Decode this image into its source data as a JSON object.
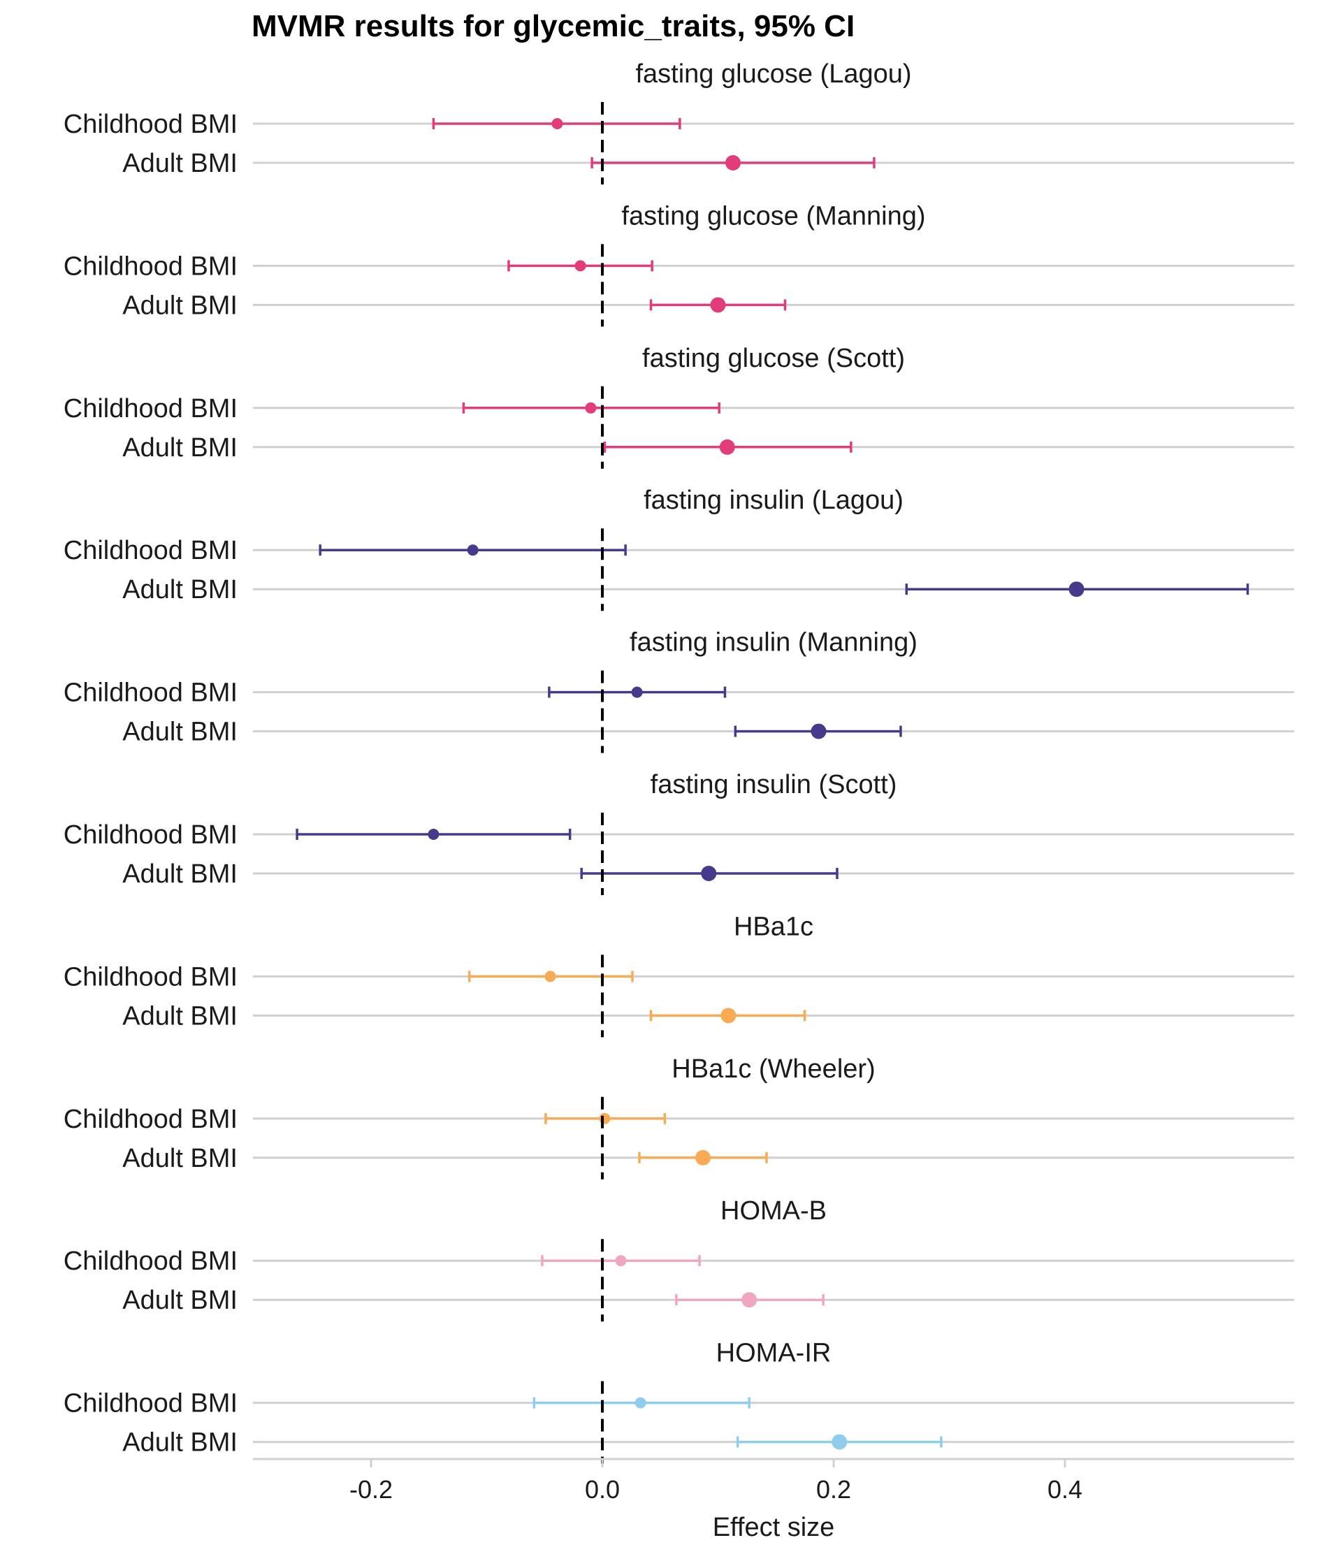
{
  "chart_data": {
    "type": "forest",
    "title": "MVMR results for glycemic_traits, 95% CI",
    "xlabel": "Effect size",
    "xlim": [
      -0.3,
      0.6
    ],
    "x_ticks": [
      -0.2,
      0.0,
      0.2,
      0.4
    ],
    "x_tick_labels": [
      "-0.2",
      "0.0",
      "0.2",
      "0.4"
    ],
    "reference_line": 0,
    "grid": "horizontal",
    "row_labels": [
      "Childhood BMI",
      "Adult BMI"
    ],
    "facets": [
      {
        "title": "fasting glucose (Lagou)",
        "color": "#E23C7B",
        "rows": [
          {
            "label": "Childhood BMI",
            "estimate": -0.039,
            "lower": -0.146,
            "upper": 0.067
          },
          {
            "label": "Adult BMI",
            "estimate": 0.113,
            "lower": -0.009,
            "upper": 0.235
          }
        ]
      },
      {
        "title": "fasting glucose (Manning)",
        "color": "#E23C7B",
        "rows": [
          {
            "label": "Childhood BMI",
            "estimate": -0.019,
            "lower": -0.081,
            "upper": 0.043
          },
          {
            "label": "Adult BMI",
            "estimate": 0.1,
            "lower": 0.042,
            "upper": 0.158
          }
        ]
      },
      {
        "title": "fasting glucose (Scott)",
        "color": "#E23C7B",
        "rows": [
          {
            "label": "Childhood BMI",
            "estimate": -0.01,
            "lower": -0.12,
            "upper": 0.101
          },
          {
            "label": "Adult BMI",
            "estimate": 0.108,
            "lower": 0.002,
            "upper": 0.215
          }
        ]
      },
      {
        "title": "fasting insulin (Lagou)",
        "color": "#473A8C",
        "rows": [
          {
            "label": "Childhood BMI",
            "estimate": -0.112,
            "lower": -0.244,
            "upper": 0.02
          },
          {
            "label": "Adult BMI",
            "estimate": 0.41,
            "lower": 0.263,
            "upper": 0.558
          }
        ]
      },
      {
        "title": "fasting insulin (Manning)",
        "color": "#473A8C",
        "rows": [
          {
            "label": "Childhood BMI",
            "estimate": 0.03,
            "lower": -0.046,
            "upper": 0.106
          },
          {
            "label": "Adult BMI",
            "estimate": 0.187,
            "lower": 0.115,
            "upper": 0.258
          }
        ]
      },
      {
        "title": "fasting insulin (Scott)",
        "color": "#473A8C",
        "rows": [
          {
            "label": "Childhood BMI",
            "estimate": -0.146,
            "lower": -0.264,
            "upper": -0.028
          },
          {
            "label": "Adult BMI",
            "estimate": 0.092,
            "lower": -0.018,
            "upper": 0.203
          }
        ]
      },
      {
        "title": "HBa1c",
        "color": "#F9AA55",
        "rows": [
          {
            "label": "Childhood BMI",
            "estimate": -0.045,
            "lower": -0.115,
            "upper": 0.026
          },
          {
            "label": "Adult BMI",
            "estimate": 0.109,
            "lower": 0.042,
            "upper": 0.175
          }
        ]
      },
      {
        "title": "HBa1c (Wheeler)",
        "color": "#F9AA55",
        "rows": [
          {
            "label": "Childhood BMI",
            "estimate": 0.002,
            "lower": -0.049,
            "upper": 0.054
          },
          {
            "label": "Adult BMI",
            "estimate": 0.087,
            "lower": 0.032,
            "upper": 0.142
          }
        ]
      },
      {
        "title": "HOMA-B",
        "color": "#EFA6C0",
        "rows": [
          {
            "label": "Childhood BMI",
            "estimate": 0.016,
            "lower": -0.052,
            "upper": 0.084
          },
          {
            "label": "Adult BMI",
            "estimate": 0.127,
            "lower": 0.064,
            "upper": 0.191
          }
        ]
      },
      {
        "title": "HOMA-IR",
        "color": "#8ECDEE",
        "rows": [
          {
            "label": "Childhood BMI",
            "estimate": 0.033,
            "lower": -0.059,
            "upper": 0.127
          },
          {
            "label": "Adult BMI",
            "estimate": 0.205,
            "lower": 0.117,
            "upper": 0.293
          }
        ]
      }
    ]
  }
}
